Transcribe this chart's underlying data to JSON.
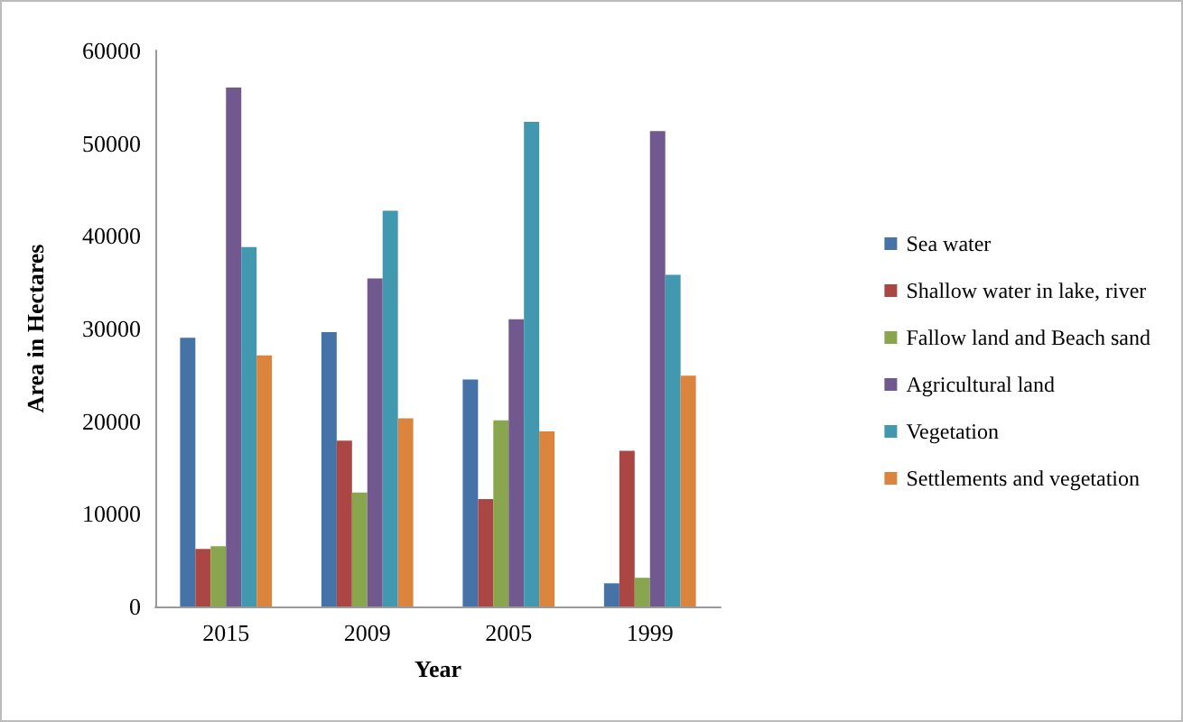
{
  "chart_data": {
    "type": "bar",
    "xlabel": "Year",
    "ylabel": "Area in Hectares",
    "categories": [
      "2015",
      "2009",
      "2005",
      "1999"
    ],
    "series": [
      {
        "name": "Sea water",
        "color": "#4572a7",
        "values": [
          29000,
          29600,
          24500,
          2500
        ]
      },
      {
        "name": "Shallow water in lake, river",
        "color": "#aa4643",
        "values": [
          6200,
          17900,
          11600,
          16800
        ]
      },
      {
        "name": "Fallow land and Beach sand",
        "color": "#89a54e",
        "values": [
          6500,
          12300,
          20100,
          3100
        ]
      },
      {
        "name": "Agricultural land",
        "color": "#71588f",
        "values": [
          56000,
          35400,
          31000,
          51300
        ]
      },
      {
        "name": "Vegetation",
        "color": "#4198af",
        "values": [
          38800,
          42700,
          52300,
          35800
        ]
      },
      {
        "name": "Settlements and vegetation",
        "color": "#db843d",
        "values": [
          27100,
          20300,
          18900,
          24900
        ]
      }
    ],
    "ylim": [
      0,
      60000
    ],
    "yticks": [
      0,
      10000,
      20000,
      30000,
      40000,
      50000,
      60000
    ],
    "grid": false,
    "legend": "right"
  }
}
